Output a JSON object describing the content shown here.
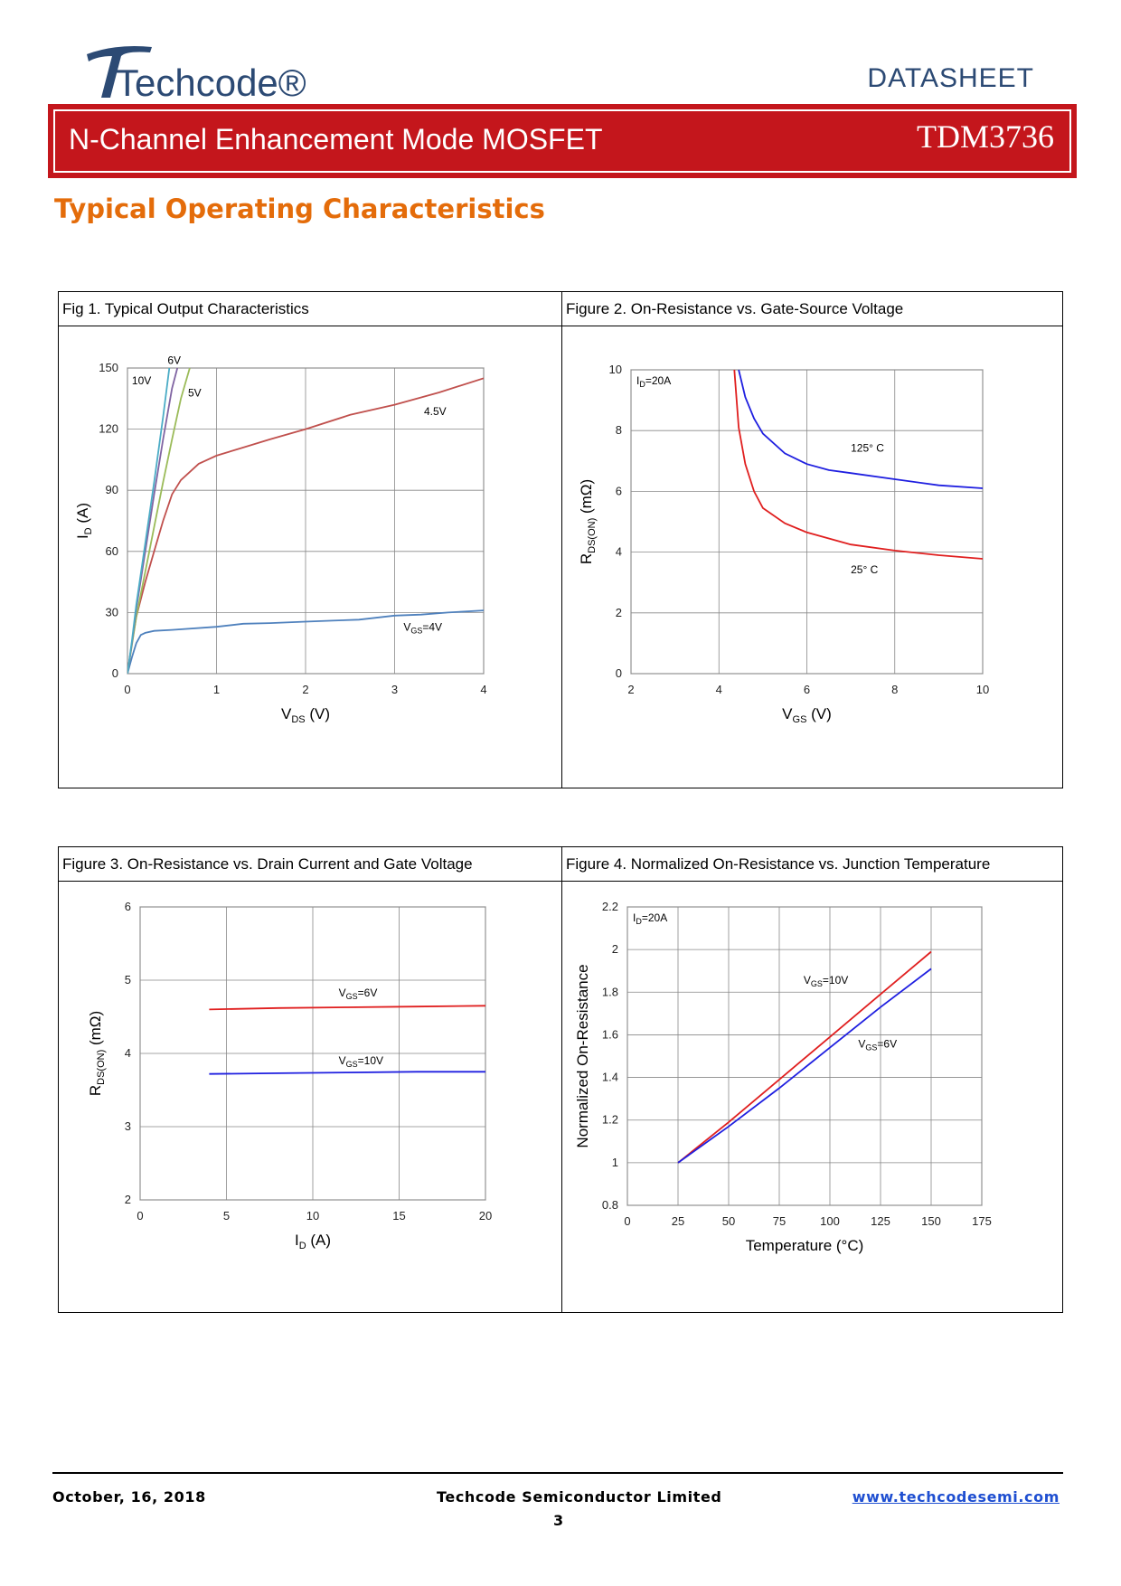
{
  "header": {
    "logo_text": "Techcode®",
    "doc_type": "DATASHEET",
    "title": "N-Channel Enhancement Mode MOSFET",
    "part_number": "TDM3736"
  },
  "section_title": "Typical Operating Characteristics",
  "colors": {
    "brand_red": "#c4161c",
    "section_orange": "#e46c0a",
    "link_blue": "#1f4fd1"
  },
  "figures": {
    "fig1_title": "Fig 1. Typical Output Characteristics",
    "fig2_title": "Figure 2. On-Resistance vs. Gate-Source Voltage",
    "fig3_title": "Figure 3. On-Resistance vs. Drain Current and Gate Voltage",
    "fig4_title": "Figure 4. Normalized On-Resistance vs. Junction Temperature"
  },
  "chart_data": [
    {
      "id": "fig1",
      "type": "line",
      "title": "Fig 1. Typical Output Characteristics",
      "xlabel": "VDS (V)",
      "ylabel": "ID (A)",
      "xlim": [
        0,
        4
      ],
      "ylim": [
        0,
        150
      ],
      "xticks": [
        0,
        1,
        2,
        3,
        4
      ],
      "yticks": [
        0,
        30,
        60,
        90,
        120,
        150
      ],
      "grid": true,
      "series": [
        {
          "name": "VGS=4V",
          "label": "V",
          "label_sub": "GS",
          "label_rest": "=4V",
          "color": "#4f81bd",
          "x": [
            0,
            0.05,
            0.1,
            0.15,
            0.2,
            0.3,
            0.5,
            1,
            1.3,
            1.6,
            2,
            2.3,
            2.6,
            3,
            3.3,
            3.6,
            4
          ],
          "y": [
            0,
            8,
            15,
            19,
            20,
            21,
            21.5,
            23,
            24.5,
            24.8,
            25.5,
            26,
            26.5,
            28.5,
            29,
            30,
            31
          ],
          "label_at": [
            3.1,
            21
          ]
        },
        {
          "name": "4.5V",
          "label": "4.5V",
          "color": "#c0504d",
          "x": [
            0,
            0.05,
            0.1,
            0.2,
            0.3,
            0.4,
            0.5,
            0.6,
            0.8,
            1,
            1.3,
            1.6,
            2,
            2.5,
            3,
            3.5,
            4
          ],
          "y": [
            0,
            15,
            28,
            45,
            60,
            75,
            88,
            95,
            103,
            107,
            111,
            115,
            120,
            127,
            132,
            138,
            145
          ],
          "label_at": [
            3.33,
            127
          ]
        },
        {
          "name": "5V",
          "label": "5V",
          "color": "#9bbb59",
          "x": [
            0,
            0.05,
            0.1,
            0.2,
            0.3,
            0.4,
            0.5,
            0.6,
            0.7
          ],
          "y": [
            0,
            14,
            28,
            50,
            72,
            94,
            115,
            135,
            150
          ],
          "label_at": [
            0.68,
            136
          ]
        },
        {
          "name": "6V",
          "label": "6V",
          "color": "#8064a2",
          "x": [
            0,
            0.05,
            0.1,
            0.2,
            0.3,
            0.4,
            0.5,
            0.56
          ],
          "y": [
            0,
            15,
            32,
            60,
            88,
            115,
            140,
            150
          ],
          "label_at": [
            0.45,
            152
          ]
        },
        {
          "name": "10V",
          "label": "10V",
          "color": "#4bacc6",
          "x": [
            0,
            0.05,
            0.1,
            0.2,
            0.3,
            0.4,
            0.47
          ],
          "y": [
            0,
            16,
            34,
            64,
            94,
            126,
            150
          ],
          "label_at": [
            0.05,
            142
          ]
        }
      ]
    },
    {
      "id": "fig2",
      "type": "line",
      "title": "Figure 2. On-Resistance vs. Gate-Source Voltage",
      "xlabel": "VGS (V)",
      "ylabel": "RDS(ON) (mΩ)",
      "annotation": "ID=20A",
      "xlim": [
        2,
        10
      ],
      "ylim": [
        0,
        10
      ],
      "xticks": [
        2,
        4,
        6,
        8,
        10
      ],
      "yticks": [
        0,
        2,
        4,
        6,
        8,
        10
      ],
      "grid": true,
      "series": [
        {
          "name": "125° C",
          "label": "125° C",
          "color": "#1f1fe0",
          "x": [
            4.45,
            4.6,
            4.8,
            5,
            5.5,
            6,
            6.5,
            7,
            8,
            9,
            10
          ],
          "y": [
            10,
            9.1,
            8.4,
            7.9,
            7.25,
            6.9,
            6.7,
            6.6,
            6.4,
            6.2,
            6.1
          ],
          "label_at": [
            7.0,
            7.3
          ]
        },
        {
          "name": "25° C",
          "label": "25° C",
          "color": "#e01f1f",
          "x": [
            4.35,
            4.45,
            4.6,
            4.8,
            5,
            5.5,
            6,
            6.5,
            7,
            8,
            9,
            10
          ],
          "y": [
            10,
            8.1,
            6.9,
            6.0,
            5.45,
            4.95,
            4.65,
            4.45,
            4.25,
            4.05,
            3.9,
            3.78
          ],
          "label_at": [
            7.0,
            3.3
          ]
        }
      ]
    },
    {
      "id": "fig3",
      "type": "line",
      "title": "Figure 3. On-Resistance vs. Drain Current and Gate Voltage",
      "xlabel": "ID (A)",
      "ylabel": "RDS(ON) (mΩ)",
      "xlim": [
        0,
        20
      ],
      "ylim": [
        2,
        6
      ],
      "xticks": [
        0,
        5,
        10,
        15,
        20
      ],
      "yticks": [
        2,
        3,
        4,
        5,
        6
      ],
      "grid": true,
      "series": [
        {
          "name": "VGS=6V",
          "label": "V",
          "label_sub": "GS",
          "label_rest": "=6V",
          "color": "#e01f1f",
          "x": [
            4,
            8,
            12,
            16,
            20
          ],
          "y": [
            4.6,
            4.62,
            4.63,
            4.64,
            4.65
          ],
          "label_at": [
            11.5,
            4.78
          ]
        },
        {
          "name": "VGS=10V",
          "label": "V",
          "label_sub": "GS",
          "label_rest": "=10V",
          "color": "#1f1fe0",
          "x": [
            4,
            8,
            12,
            16,
            20
          ],
          "y": [
            3.72,
            3.73,
            3.74,
            3.75,
            3.75
          ],
          "label_at": [
            11.5,
            3.85
          ]
        }
      ]
    },
    {
      "id": "fig4",
      "type": "line",
      "title": "Figure 4. Normalized On-Resistance vs. Junction Temperature",
      "xlabel": "Temperature (°C)",
      "ylabel": "Normalized On-Resistance",
      "annotation": "ID=20A",
      "xlim": [
        0,
        175
      ],
      "ylim": [
        0.8,
        2.2
      ],
      "xticks": [
        0,
        25,
        50,
        75,
        100,
        125,
        150,
        175
      ],
      "yticks": [
        0.8,
        1,
        1.2,
        1.4,
        1.6,
        1.8,
        2,
        2.2
      ],
      "grid": true,
      "series": [
        {
          "name": "VGS=10V",
          "label": "V",
          "label_sub": "GS",
          "label_rest": "=10V",
          "color": "#e01f1f",
          "x": [
            25,
            50,
            75,
            100,
            125,
            150
          ],
          "y": [
            1.0,
            1.19,
            1.39,
            1.59,
            1.79,
            1.99
          ],
          "label_at": [
            87,
            1.84
          ]
        },
        {
          "name": "VGS=6V",
          "label": "V",
          "label_sub": "GS",
          "label_rest": "=6V",
          "color": "#1f1fe0",
          "x": [
            25,
            50,
            75,
            100,
            125,
            150
          ],
          "y": [
            1.0,
            1.17,
            1.35,
            1.54,
            1.73,
            1.91
          ],
          "label_at": [
            114,
            1.54
          ]
        }
      ]
    }
  ],
  "footer": {
    "date": "October, 16, 2018",
    "company": "Techcode Semiconductor Limited",
    "url": "www.techcodesemi.com",
    "page": "3"
  }
}
